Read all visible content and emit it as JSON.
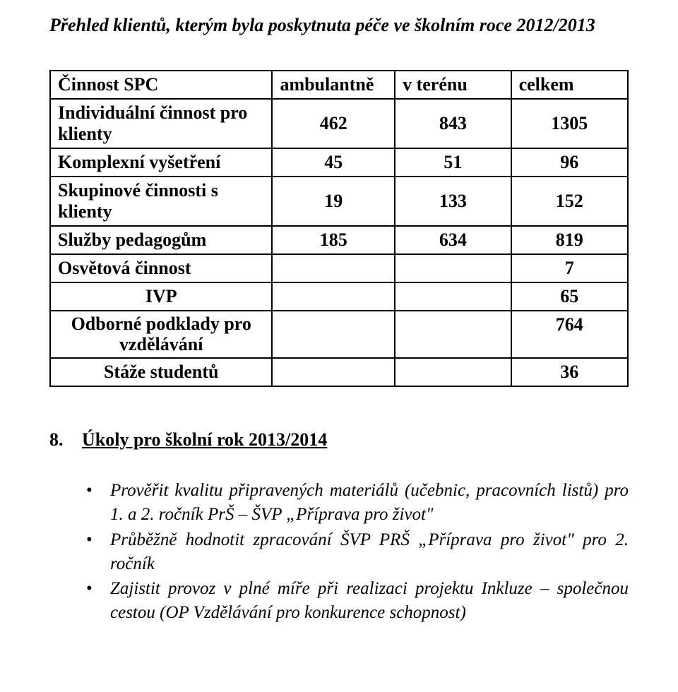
{
  "heading": "Přehled klientů, kterým byla poskytnuta péče ve školním roce 2012/2013",
  "table": {
    "header": {
      "c0": "Činnost SPC",
      "c1": "ambulantně",
      "c2": "v terénu",
      "c3": "celkem"
    },
    "rows": {
      "r1": {
        "label": "Individuální činnost pro klienty",
        "a": "462",
        "b": "843",
        "c": "1305"
      },
      "r2": {
        "label": "Komplexní vyšetření",
        "a": "45",
        "b": "51",
        "c": "96"
      },
      "r3": {
        "label": "Skupinové činnosti s klienty",
        "a": "19",
        "b": "133",
        "c": "152"
      },
      "r4": {
        "label": "Služby pedagogům",
        "a": "185",
        "b": "634",
        "c": "819"
      },
      "r5": {
        "label": "Osvětová činnost",
        "c": "7"
      },
      "r6": {
        "label": "IVP",
        "c": "65"
      },
      "r7": {
        "label_line1": "Odborné podklady pro",
        "label_line2": "vzdělávání",
        "c": "764"
      },
      "r8": {
        "label": "Stáže studentů",
        "c": "36"
      }
    }
  },
  "section": {
    "num": "8.",
    "title": "Úkoly pro školní rok 2013/2014"
  },
  "bullets": {
    "b1": "Prověřit kvalitu připravených materiálů (učebnic, pracovních listů) pro 1. a 2. ročník PrŠ – ŠVP „Příprava pro život\"",
    "b2": "Průběžně hodnotit zpracování ŠVP PRŠ „Příprava pro život\" pro 2. ročník",
    "b3": "Zajistit provoz v plné míře při realizaci projektu Inkluze – společnou cestou (OP Vzdělávání pro konkurence schopnost)"
  }
}
